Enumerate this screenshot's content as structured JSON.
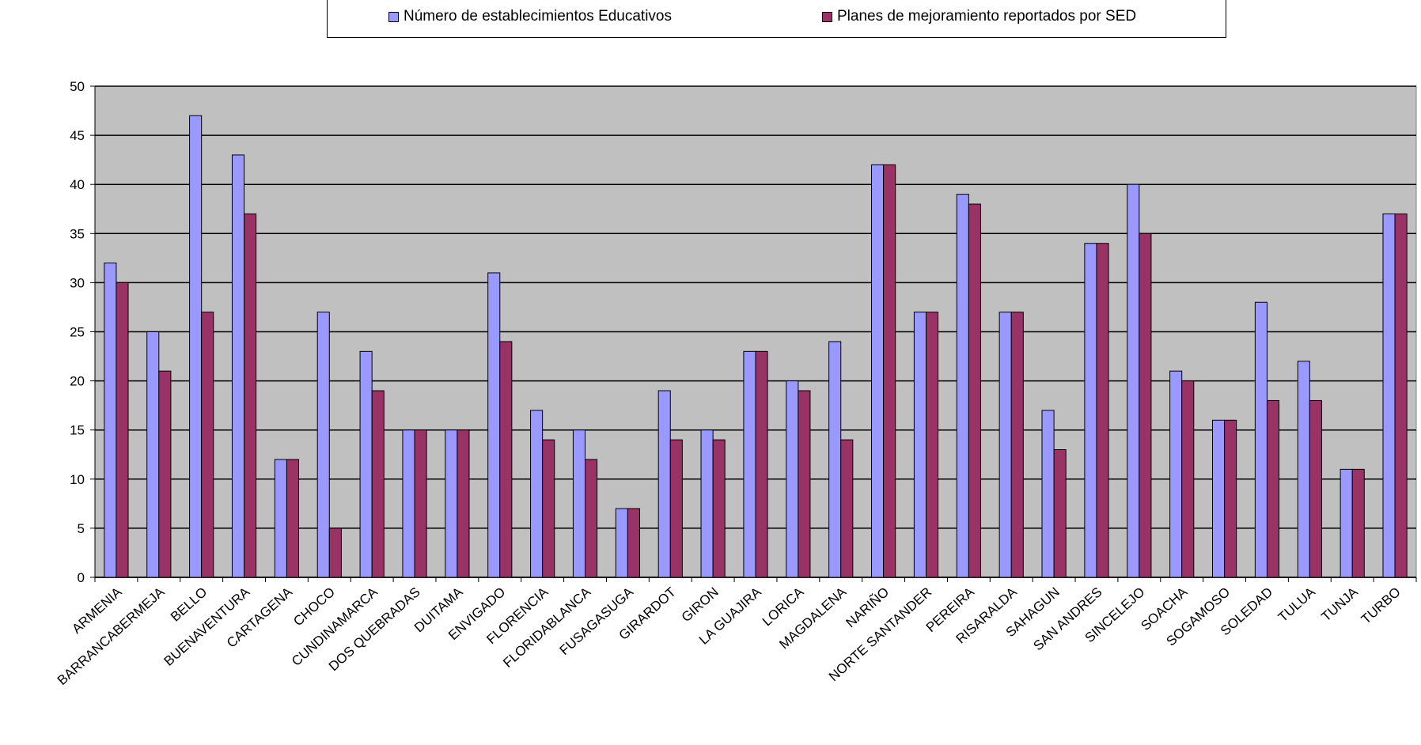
{
  "chart_data": {
    "type": "bar",
    "categories": [
      "ARMENIA",
      "BARRANCABERMEJA",
      "BELLO",
      "BUENAVENTURA",
      "CARTAGENA",
      "CHOCO",
      "CUNDINAMARCA",
      "DOS QUEBRADAS",
      "DUITAMA",
      "ENVIGADO",
      "FLORENCIA",
      "FLORIDABLANCA",
      "FUSAGASUGA",
      "GIRARDOT",
      "GIRON",
      "LA GUAJIRA",
      "LORICA",
      "MAGDALENA",
      "NARIÑO",
      "NORTE SANTANDER",
      "PEREIRA",
      "RISARALDA",
      "SAHAGUN",
      "SAN ANDRES",
      "SINCELEJO",
      "SOACHA",
      "SOGAMOSO",
      "SOLEDAD",
      "TULUA",
      "TUNJA",
      "TURBO"
    ],
    "series": [
      {
        "name": "Número de establecimientos Educativos",
        "color": "#9999ff",
        "values": [
          32,
          25,
          47,
          43,
          12,
          27,
          23,
          15,
          15,
          31,
          17,
          15,
          7,
          19,
          15,
          23,
          20,
          24,
          42,
          27,
          39,
          27,
          17,
          34,
          40,
          21,
          16,
          28,
          22,
          11,
          37
        ]
      },
      {
        "name": "Planes de mejoramiento reportados por SED",
        "color": "#993366",
        "values": [
          30,
          21,
          27,
          37,
          12,
          5,
          19,
          15,
          15,
          24,
          14,
          12,
          7,
          14,
          14,
          23,
          19,
          14,
          42,
          27,
          38,
          27,
          13,
          34,
          35,
          20,
          16,
          18,
          18,
          11,
          37
        ]
      }
    ],
    "yticks": [
      0,
      5,
      10,
      15,
      20,
      25,
      30,
      35,
      40,
      45,
      50
    ],
    "ylim": [
      0,
      50
    ],
    "grid": true,
    "legend_position": "top",
    "plot_background": "#c0c0c0"
  }
}
